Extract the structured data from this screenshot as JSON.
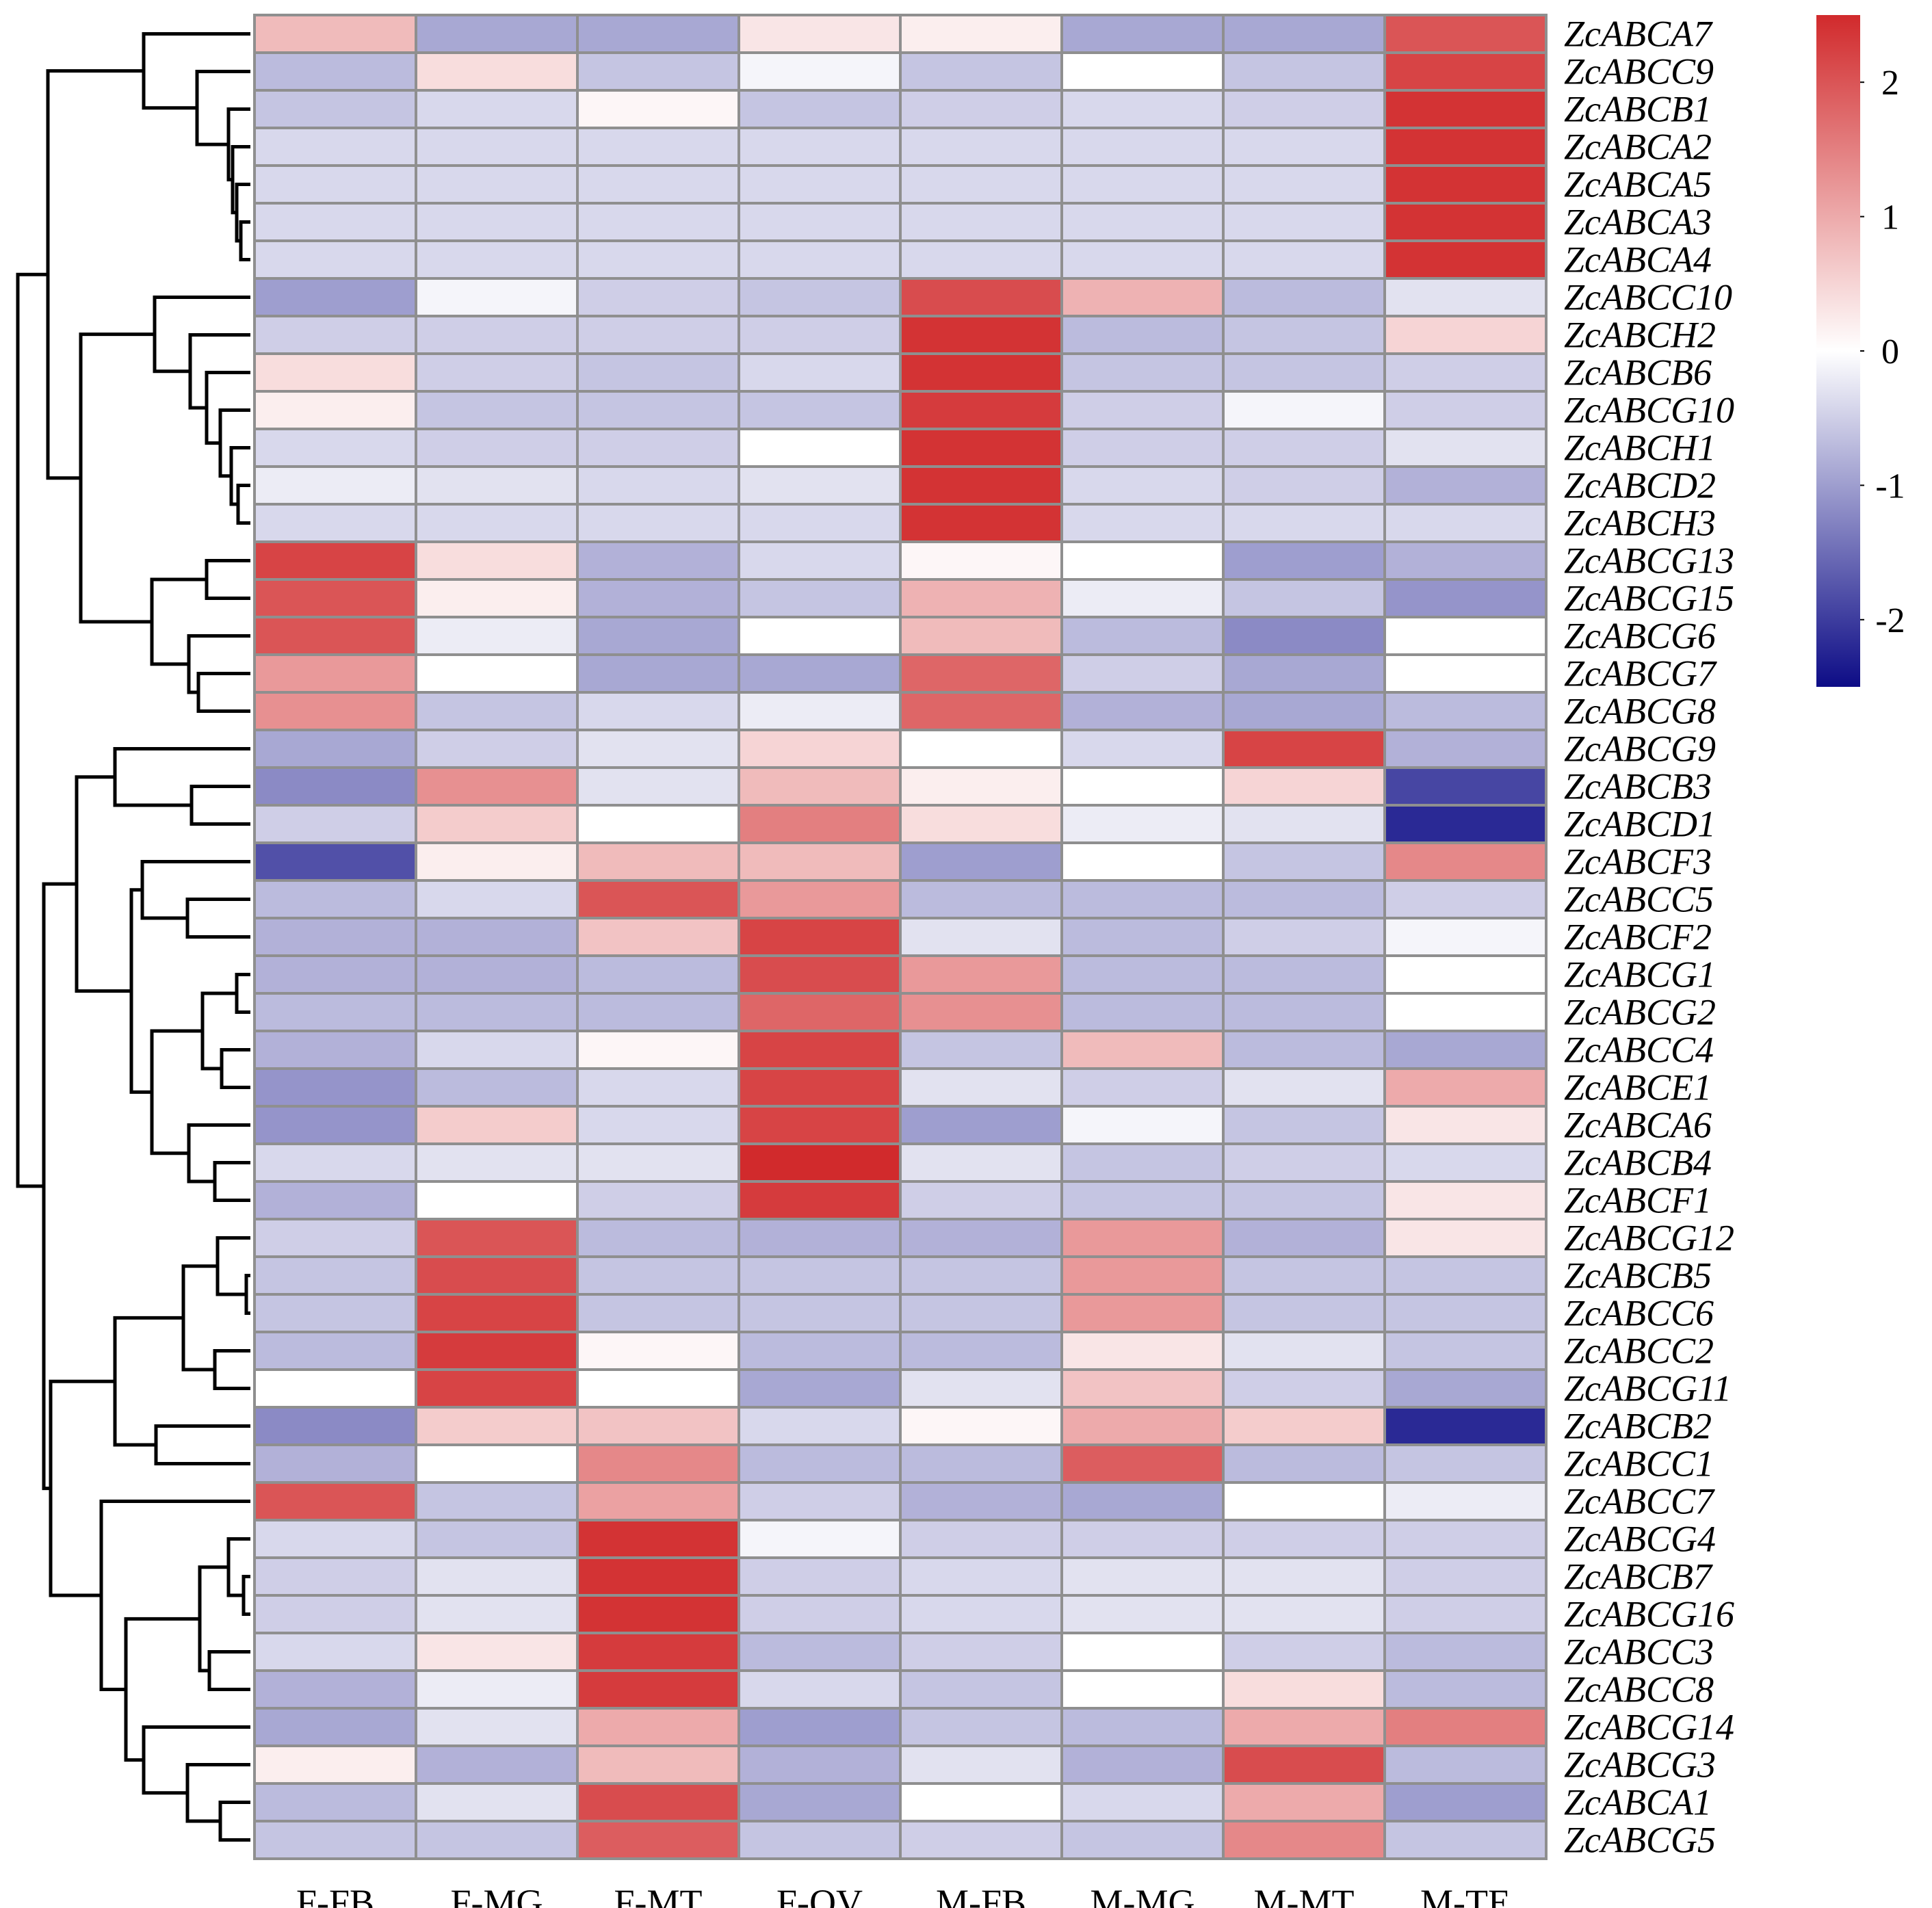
{
  "chart_data": {
    "type": "heatmap",
    "title": "",
    "columns": [
      "F-FB",
      "F-MG",
      "F-MT",
      "F-OV",
      "M-FB",
      "M-MG",
      "M-MT",
      "M-TE"
    ],
    "rows": [
      "ZcABCA7",
      "ZcABCC9",
      "ZcABCB1",
      "ZcABCA2",
      "ZcABCA5",
      "ZcABCA3",
      "ZcABCA4",
      "ZcABCC10",
      "ZcABCH2",
      "ZcABCB6",
      "ZcABCG10",
      "ZcABCH1",
      "ZcABCD2",
      "ZcABCH3",
      "ZcABCG13",
      "ZcABCG15",
      "ZcABCG6",
      "ZcABCG7",
      "ZcABCG8",
      "ZcABCG9",
      "ZcABCB3",
      "ZcABCD1",
      "ZcABCF3",
      "ZcABCC5",
      "ZcABCF2",
      "ZcABCG1",
      "ZcABCG2",
      "ZcABCC4",
      "ZcABCE1",
      "ZcABCA6",
      "ZcABCB4",
      "ZcABCF1",
      "ZcABCG12",
      "ZcABCB5",
      "ZcABCC6",
      "ZcABCC2",
      "ZcABCG11",
      "ZcABCB2",
      "ZcABCC1",
      "ZcABCC7",
      "ZcABCG4",
      "ZcABCB7",
      "ZcABCG16",
      "ZcABCC3",
      "ZcABCC8",
      "ZcABCG14",
      "ZcABCG3",
      "ZcABCA1",
      "ZcABCG5"
    ],
    "values": [
      [
        0.8,
        -0.9,
        -0.9,
        0.3,
        0.2,
        -0.9,
        -0.9,
        2.0
      ],
      [
        -0.7,
        0.4,
        -0.6,
        -0.1,
        -0.6,
        0.0,
        -0.6,
        2.2
      ],
      [
        -0.6,
        -0.4,
        0.1,
        -0.6,
        -0.5,
        -0.4,
        -0.5,
        2.4
      ],
      [
        -0.4,
        -0.4,
        -0.4,
        -0.4,
        -0.4,
        -0.4,
        -0.4,
        2.4
      ],
      [
        -0.4,
        -0.4,
        -0.4,
        -0.4,
        -0.4,
        -0.4,
        -0.4,
        2.4
      ],
      [
        -0.4,
        -0.4,
        -0.4,
        -0.4,
        -0.4,
        -0.4,
        -0.4,
        2.4
      ],
      [
        -0.4,
        -0.4,
        -0.4,
        -0.4,
        -0.4,
        -0.4,
        -0.4,
        2.4
      ],
      [
        -1.0,
        -0.1,
        -0.5,
        -0.6,
        2.1,
        0.9,
        -0.7,
        -0.3
      ],
      [
        -0.5,
        -0.5,
        -0.5,
        -0.5,
        2.4,
        -0.7,
        -0.6,
        0.5
      ],
      [
        0.4,
        -0.5,
        -0.6,
        -0.4,
        2.4,
        -0.6,
        -0.6,
        -0.5
      ],
      [
        0.2,
        -0.6,
        -0.6,
        -0.6,
        2.3,
        -0.5,
        -0.1,
        -0.5
      ],
      [
        -0.4,
        -0.5,
        -0.5,
        0.0,
        2.4,
        -0.5,
        -0.5,
        -0.3
      ],
      [
        -0.2,
        -0.3,
        -0.4,
        -0.3,
        2.4,
        -0.4,
        -0.5,
        -0.8
      ],
      [
        -0.4,
        -0.4,
        -0.4,
        -0.4,
        2.4,
        -0.4,
        -0.4,
        -0.4
      ],
      [
        2.2,
        0.4,
        -0.8,
        -0.4,
        0.1,
        0.0,
        -1.0,
        -0.8
      ],
      [
        2.0,
        0.2,
        -0.8,
        -0.6,
        0.9,
        -0.2,
        -0.6,
        -1.1
      ],
      [
        2.0,
        -0.2,
        -0.9,
        0.0,
        0.8,
        -0.7,
        -1.2,
        0.0
      ],
      [
        1.2,
        0.0,
        -0.9,
        -0.9,
        1.8,
        -0.5,
        -0.9,
        0.0
      ],
      [
        1.3,
        -0.6,
        -0.4,
        -0.2,
        1.8,
        -0.8,
        -0.9,
        -0.7
      ],
      [
        -0.9,
        -0.5,
        -0.3,
        0.5,
        0.0,
        -0.4,
        2.2,
        -0.8
      ],
      [
        -1.2,
        1.3,
        -0.3,
        0.8,
        0.2,
        0.0,
        0.5,
        -1.9
      ],
      [
        -0.5,
        0.6,
        0.0,
        1.5,
        0.4,
        -0.2,
        -0.3,
        -2.2
      ],
      [
        -1.8,
        0.2,
        0.8,
        0.8,
        -1.0,
        0.0,
        -0.6,
        1.4
      ],
      [
        -0.7,
        -0.4,
        2.0,
        1.2,
        -0.7,
        -0.7,
        -0.7,
        -0.5
      ],
      [
        -0.8,
        -0.8,
        0.7,
        2.2,
        -0.3,
        -0.7,
        -0.5,
        -0.1
      ],
      [
        -0.8,
        -0.8,
        -0.7,
        2.1,
        1.2,
        -0.7,
        -0.7,
        0.0
      ],
      [
        -0.7,
        -0.7,
        -0.7,
        1.8,
        1.3,
        -0.7,
        -0.7,
        0.0
      ],
      [
        -0.8,
        -0.4,
        0.1,
        2.2,
        -0.6,
        0.8,
        -0.7,
        -0.9
      ],
      [
        -1.1,
        -0.7,
        -0.4,
        2.2,
        -0.3,
        -0.5,
        -0.3,
        1.0
      ],
      [
        -1.1,
        0.6,
        -0.4,
        2.2,
        -1.0,
        -0.1,
        -0.6,
        0.3
      ],
      [
        -0.4,
        -0.3,
        -0.3,
        2.5,
        -0.3,
        -0.6,
        -0.5,
        -0.4
      ],
      [
        -0.8,
        0.0,
        -0.5,
        2.3,
        -0.5,
        -0.6,
        -0.6,
        0.3
      ],
      [
        -0.5,
        2.0,
        -0.7,
        -0.8,
        -0.8,
        1.2,
        -0.8,
        0.3
      ],
      [
        -0.6,
        2.1,
        -0.6,
        -0.6,
        -0.6,
        1.2,
        -0.6,
        -0.6
      ],
      [
        -0.6,
        2.2,
        -0.6,
        -0.6,
        -0.6,
        1.2,
        -0.6,
        -0.6
      ],
      [
        -0.7,
        2.3,
        0.1,
        -0.7,
        -0.7,
        0.3,
        -0.3,
        -0.6
      ],
      [
        0.0,
        2.2,
        0.0,
        -0.9,
        -0.3,
        0.7,
        -0.5,
        -0.9
      ],
      [
        -1.2,
        0.6,
        0.7,
        -0.4,
        0.1,
        1.0,
        0.6,
        -2.2
      ],
      [
        -0.8,
        0.0,
        1.4,
        -0.7,
        -0.7,
        1.9,
        -0.7,
        -0.6
      ],
      [
        2.0,
        -0.6,
        1.1,
        -0.5,
        -0.8,
        -0.9,
        0.0,
        -0.2
      ],
      [
        -0.4,
        -0.6,
        2.4,
        -0.1,
        -0.5,
        -0.5,
        -0.5,
        -0.5
      ],
      [
        -0.5,
        -0.3,
        2.4,
        -0.5,
        -0.4,
        -0.3,
        -0.3,
        -0.5
      ],
      [
        -0.5,
        -0.3,
        2.4,
        -0.5,
        -0.4,
        -0.3,
        -0.3,
        -0.5
      ],
      [
        -0.4,
        0.3,
        2.3,
        -0.7,
        -0.5,
        0.0,
        -0.5,
        -0.7
      ],
      [
        -0.8,
        -0.2,
        2.3,
        -0.4,
        -0.6,
        0.0,
        0.4,
        -0.7
      ],
      [
        -0.9,
        -0.3,
        1.0,
        -1.0,
        -0.6,
        -0.7,
        1.0,
        1.5
      ],
      [
        0.2,
        -0.8,
        0.8,
        -0.8,
        -0.3,
        -0.8,
        2.1,
        -0.7
      ],
      [
        -0.7,
        -0.3,
        2.1,
        -0.9,
        0.0,
        -0.4,
        1.0,
        -1.0
      ],
      [
        -0.6,
        -0.6,
        1.9,
        -0.6,
        -0.5,
        -0.6,
        1.4,
        -0.6
      ]
    ],
    "colorbar": {
      "range": [
        -2.5,
        2.5
      ],
      "ticks": [
        -2,
        -1,
        0,
        1,
        2
      ],
      "tick_labels": [
        "-2",
        "-1",
        "0",
        "1",
        "2"
      ],
      "low_color": "#0d0c86",
      "mid_color": "#ffffff",
      "high_color": "#d12a2c"
    },
    "grid_color": "#8f8f8f",
    "row_dendrogram": true,
    "xlabel": "",
    "ylabel": ""
  }
}
